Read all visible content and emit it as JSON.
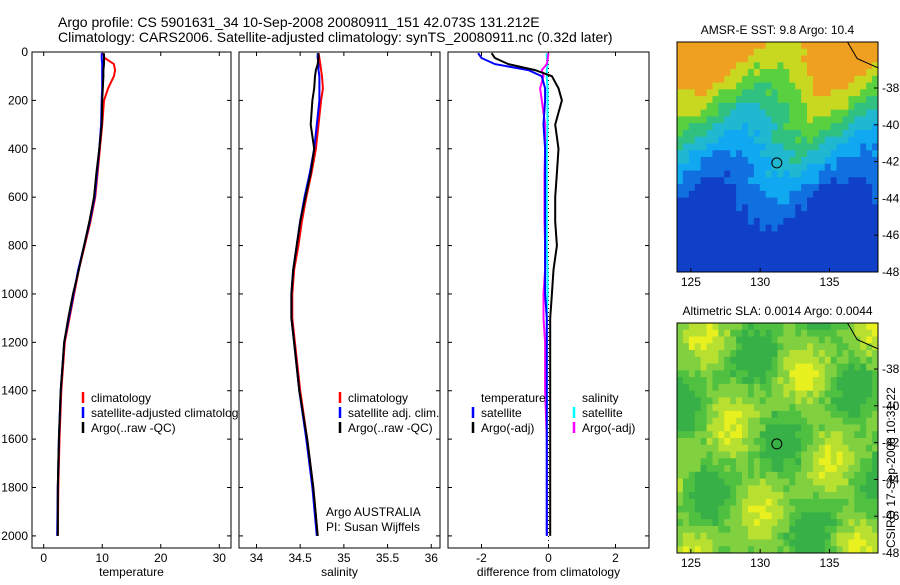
{
  "header": {
    "line1": "Argo profile: CS 5901631_34 10-Sep-2008 20080911_151 42.073S 131.212E",
    "line2": "Climatology: CARS2006. Satellite-adjusted climatology: synTS_20080911.nc (0.32d later)"
  },
  "footer_side": "CSIRO 17-Sep-2008 10:31:22",
  "colors": {
    "climatology": "#ff0000",
    "satellite": "#0000ff",
    "argo": "#000000",
    "sat_diff_salinity": "#00ffff",
    "argo_diff_salinity": "#ff00ff"
  },
  "chart_data": [
    {
      "type": "line",
      "id": "temperature",
      "xlabel": "temperature",
      "xlim": [
        -2,
        32
      ],
      "ylim": [
        2050,
        0
      ],
      "xticks": [
        0,
        10,
        20,
        30
      ],
      "yticks": [
        0,
        200,
        400,
        600,
        800,
        1000,
        1200,
        1400,
        1600,
        1800,
        2000
      ],
      "legend": [
        "climatology",
        "satellite-adjusted climatolog",
        "Argo(..raw -QC)"
      ],
      "series": [
        {
          "name": "climatology",
          "color": "#ff0000",
          "x": [
            10.1,
            10.4,
            12.0,
            12.2,
            12.0,
            11.0,
            10.3,
            10.0,
            9.6,
            9.2,
            8.8,
            8.0,
            7.0,
            6.0,
            5.2,
            4.4,
            3.6,
            3.0,
            2.7,
            2.5,
            2.4
          ],
          "y": [
            5,
            25,
            50,
            75,
            100,
            150,
            200,
            300,
            400,
            500,
            600,
            700,
            800,
            900,
            1000,
            1100,
            1200,
            1400,
            1600,
            1800,
            2000
          ]
        },
        {
          "name": "satellite-adjusted climatology",
          "color": "#0000ff",
          "x": [
            9.9,
            9.9,
            10.0,
            10.0,
            10.0,
            10.0,
            9.9,
            9.8,
            9.5,
            9.1,
            8.7,
            7.9,
            6.9,
            5.9,
            5.1,
            4.3,
            3.5,
            2.9,
            2.6,
            2.4,
            2.3
          ],
          "y": [
            5,
            25,
            50,
            75,
            100,
            150,
            200,
            300,
            400,
            500,
            600,
            700,
            800,
            900,
            1000,
            1100,
            1200,
            1400,
            1600,
            1800,
            2000
          ]
        },
        {
          "name": "Argo(..raw -QC)",
          "color": "#000000",
          "x": [
            10.3,
            10.3,
            10.3,
            10.2,
            10.2,
            10.1,
            10.0,
            9.9,
            9.5,
            9.0,
            8.6,
            7.8,
            6.9,
            6.0,
            5.0,
            4.2,
            3.5,
            2.9,
            2.6,
            2.4,
            2.4
          ],
          "y": [
            5,
            25,
            50,
            75,
            100,
            150,
            200,
            300,
            400,
            500,
            600,
            700,
            800,
            900,
            1000,
            1100,
            1200,
            1400,
            1600,
            1800,
            2000
          ]
        }
      ]
    },
    {
      "type": "line",
      "id": "salinity",
      "xlabel": "salinity",
      "xlim": [
        33.8,
        36.1
      ],
      "ylim": [
        2050,
        0
      ],
      "xticks": [
        34,
        34.5,
        35,
        35.5,
        36
      ],
      "xtick_labels": [
        "34",
        "34.5",
        "35",
        "35.5",
        "36"
      ],
      "legend": [
        "climatology",
        "satellite adj. clim.",
        "Argo(..raw -QC)"
      ],
      "annotation": [
        "Argo AUSTRALIA",
        "PI: Susan Wijffels"
      ],
      "series": [
        {
          "name": "climatology",
          "color": "#ff0000",
          "x": [
            34.71,
            34.72,
            34.73,
            34.74,
            34.75,
            34.76,
            34.74,
            34.71,
            34.68,
            34.63,
            34.57,
            34.52,
            34.48,
            34.43,
            34.41,
            34.41,
            34.44,
            34.5,
            34.58,
            34.65,
            34.7
          ],
          "y": [
            5,
            25,
            50,
            75,
            100,
            150,
            200,
            300,
            400,
            500,
            600,
            700,
            800,
            900,
            1000,
            1100,
            1200,
            1400,
            1600,
            1800,
            2000
          ]
        },
        {
          "name": "satellite adj. clim.",
          "color": "#0000ff",
          "x": [
            34.7,
            34.7,
            34.71,
            34.71,
            34.72,
            34.72,
            34.72,
            34.69,
            34.66,
            34.61,
            34.55,
            34.5,
            34.46,
            34.42,
            34.4,
            34.4,
            34.43,
            34.49,
            34.57,
            34.64,
            34.69
          ],
          "y": [
            5,
            25,
            50,
            75,
            100,
            150,
            200,
            300,
            400,
            500,
            600,
            700,
            800,
            900,
            1000,
            1100,
            1200,
            1400,
            1600,
            1800,
            2000
          ]
        },
        {
          "name": "Argo(..raw -QC)",
          "color": "#000000",
          "x": [
            34.71,
            34.71,
            34.7,
            34.68,
            34.67,
            34.66,
            34.64,
            34.62,
            34.66,
            34.62,
            34.56,
            34.5,
            34.46,
            34.42,
            34.4,
            34.4,
            34.43,
            34.49,
            34.58,
            34.65,
            34.7
          ],
          "y": [
            5,
            25,
            50,
            75,
            100,
            150,
            200,
            300,
            400,
            500,
            600,
            700,
            800,
            900,
            1000,
            1100,
            1200,
            1400,
            1600,
            1800,
            2000
          ]
        }
      ]
    },
    {
      "type": "line",
      "id": "difference",
      "xlabel": "difference from climatology",
      "xlim": [
        -3,
        3
      ],
      "ylim": [
        2050,
        0
      ],
      "xticks": [
        -2,
        0,
        2
      ],
      "legend_left": [
        "temperature",
        "satellite",
        "Argo(-adj)"
      ],
      "legend_right": [
        "salinity",
        "satellite",
        "Argo(-adj)"
      ],
      "series": [
        {
          "name": "temperature satellite",
          "color": "#0000ff",
          "x": [
            -2.1,
            -2.0,
            -1.6,
            -0.6,
            -0.2,
            -0.1,
            -0.1,
            -0.15,
            -0.1,
            -0.1,
            -0.1,
            -0.1,
            -0.1,
            -0.1,
            -0.1,
            -0.05,
            -0.05,
            -0.05,
            -0.05,
            -0.05,
            -0.05
          ],
          "y": [
            5,
            25,
            50,
            75,
            100,
            150,
            200,
            300,
            400,
            500,
            600,
            700,
            800,
            900,
            1000,
            1100,
            1200,
            1400,
            1600,
            1800,
            2000
          ]
        },
        {
          "name": "temperature Argo(-adj)",
          "color": "#000000",
          "x": [
            -1.7,
            -1.6,
            -1.2,
            -0.4,
            0.1,
            0.3,
            0.4,
            0.2,
            0.3,
            0.25,
            0.2,
            0.2,
            0.25,
            0.15,
            0.1,
            0.05,
            0.05,
            0.05,
            0.05,
            0.05,
            0.05
          ],
          "y": [
            5,
            25,
            50,
            75,
            100,
            150,
            200,
            300,
            400,
            500,
            600,
            700,
            800,
            900,
            1000,
            1100,
            1200,
            1400,
            1600,
            1800,
            2000
          ]
        },
        {
          "name": "salinity satellite",
          "color": "#00ffff",
          "x": [
            -0.05,
            -0.05,
            -0.03,
            -0.05,
            -0.05,
            -0.03,
            -0.03,
            -0.03,
            -0.05,
            -0.05,
            -0.05,
            -0.05,
            -0.05,
            -0.03,
            -0.03,
            -0.05,
            -0.05,
            -0.05,
            -0.05,
            -0.05,
            -0.05
          ],
          "y": [
            5,
            25,
            50,
            75,
            100,
            150,
            200,
            300,
            400,
            500,
            600,
            700,
            800,
            900,
            1000,
            1100,
            1200,
            1400,
            1600,
            1800,
            2000
          ]
        },
        {
          "name": "salinity Argo(-adj)",
          "color": "#ff00ff",
          "x": [
            0.0,
            -0.02,
            -0.05,
            -0.2,
            -0.15,
            -0.25,
            -0.2,
            -0.1,
            -0.1,
            -0.12,
            -0.12,
            -0.12,
            -0.1,
            -0.1,
            -0.15,
            -0.15,
            -0.1,
            -0.1,
            -0.05,
            -0.05,
            -0.05
          ],
          "y": [
            5,
            25,
            50,
            75,
            100,
            150,
            200,
            300,
            400,
            500,
            600,
            700,
            800,
            900,
            1000,
            1100,
            1200,
            1400,
            1600,
            1800,
            2000
          ]
        }
      ]
    },
    {
      "type": "heatmap",
      "id": "sst-map",
      "title": "AMSR-E SST: 9.8 Argo: 10.4",
      "xlim": [
        124,
        138.5
      ],
      "ylim": [
        -48,
        -35.5
      ],
      "xticks": [
        125,
        130,
        135
      ],
      "yticks": [
        -38,
        -40,
        -42,
        -44,
        -46,
        -48
      ],
      "marker": [
        131.2,
        -42.07
      ]
    },
    {
      "type": "heatmap",
      "id": "sla-map",
      "title": "Altimetric SLA: 0.0014 Argo: 0.0044",
      "xlim": [
        124,
        138.5
      ],
      "ylim": [
        -48,
        -35.5
      ],
      "xticks": [
        125,
        130,
        135
      ],
      "yticks": [
        -38,
        -40,
        -42,
        -44,
        -46,
        -48
      ],
      "marker": [
        131.2,
        -42.07
      ]
    }
  ]
}
